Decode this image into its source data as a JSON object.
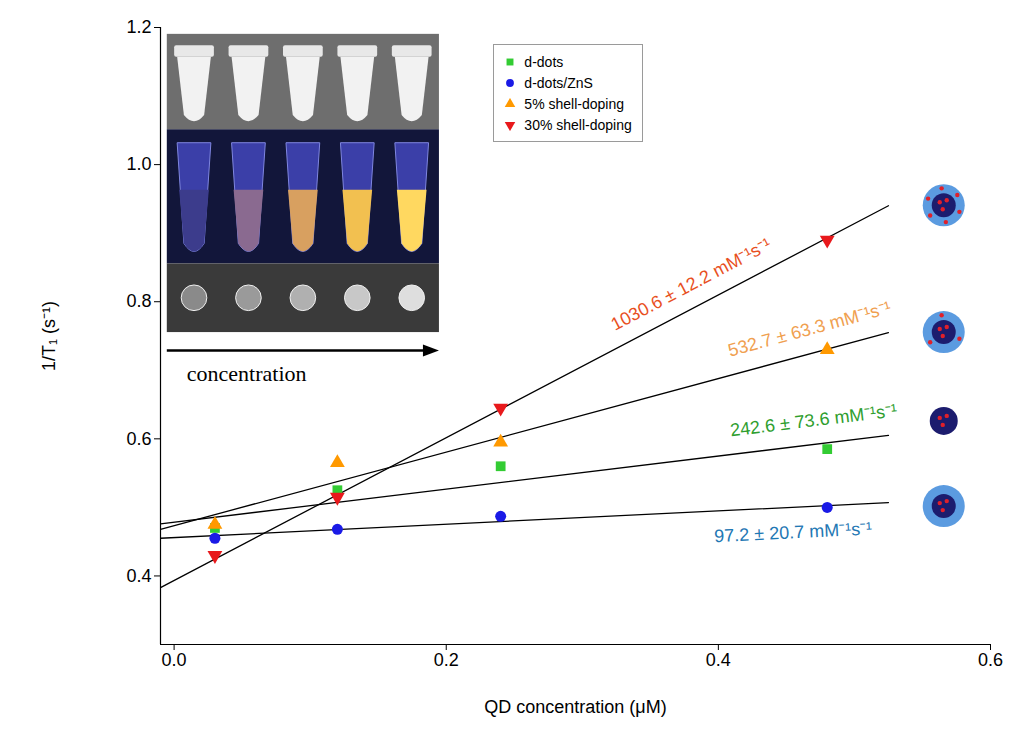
{
  "chart_data": {
    "type": "scatter",
    "x_label": "QD concentration (μM)",
    "y_label": "1/T₁ (s⁻¹)",
    "xlim": [
      -0.01,
      0.6
    ],
    "xticks": [
      {
        "value": 0,
        "label": "0.0"
      },
      0.2,
      0.4,
      0.6
    ],
    "ylim": [
      0.3,
      1.2
    ],
    "yticks": [
      0.4,
      0.6,
      0.8,
      {
        "value": 1,
        "label": "1.0"
      },
      1.2
    ],
    "grid": false,
    "legend": "top",
    "inset_caption": "concentration",
    "x": [
      0.03,
      0.12,
      0.24,
      0.48
    ],
    "series": [
      {
        "name": "d-dots",
        "color": "#33cc33",
        "marker": "square",
        "values": [
          0.47,
          0.525,
          0.56,
          0.585
        ],
        "fit_x": [
          -0.01,
          0.525
        ],
        "fit_y": [
          0.476,
          0.605
        ],
        "annotation": {
          "text": "242.6 ± 73.6 mM⁻¹s⁻¹",
          "color": "#2e9e2e"
        }
      },
      {
        "name": "d-dots/ZnS",
        "color": "#1a1ae6",
        "marker": "circle",
        "values": [
          0.455,
          0.468,
          0.487,
          0.5
        ],
        "fit_x": [
          -0.01,
          0.525
        ],
        "fit_y": [
          0.455,
          0.507
        ],
        "annotation": {
          "text": "97.2 ± 20.7 mM⁻¹s⁻¹",
          "color": "#1f78b4"
        }
      },
      {
        "name": "5% shell-doping",
        "color": "#ff9900",
        "marker": "triangle-up",
        "values": [
          0.475,
          0.565,
          0.595,
          0.73
        ],
        "fit_x": [
          -0.01,
          0.525
        ],
        "fit_y": [
          0.468,
          0.755
        ],
        "annotation": {
          "text": "532.7 ± 63.3 mM⁻¹s⁻¹",
          "color": "#f0a050"
        }
      },
      {
        "name": "30% shell-doping",
        "color": "#e8191c",
        "marker": "triangle-down",
        "values": [
          0.43,
          0.515,
          0.645,
          0.89
        ],
        "fit_x": [
          -0.01,
          0.525
        ],
        "fit_y": [
          0.383,
          0.94
        ],
        "annotation": {
          "text": "1030.6 ± 12.2 mM⁻¹s⁻¹",
          "color": "#e8501e"
        }
      }
    ]
  }
}
